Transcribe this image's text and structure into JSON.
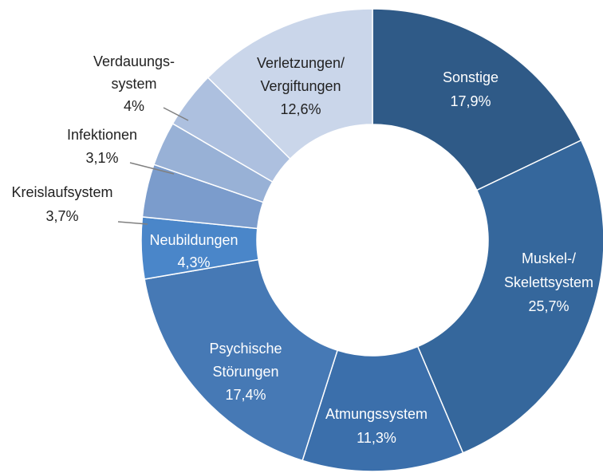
{
  "chart_data": {
    "type": "donut",
    "categories": [
      [
        "Sonstige"
      ],
      [
        "Muskel-/",
        "Skelettsystem"
      ],
      [
        "Atmungssystem"
      ],
      [
        "Psychische",
        "Störungen"
      ],
      [
        "Neubildungen"
      ],
      [
        "Kreislaufsystem"
      ],
      [
        "Infektionen"
      ],
      [
        "Verdauungs-",
        "system"
      ],
      [
        "Verletzungen/",
        "Vergiftungen"
      ]
    ],
    "values": [
      17.9,
      25.7,
      11.3,
      17.4,
      4.3,
      3.7,
      3.1,
      4,
      12.6
    ],
    "value_labels": [
      "17,9%",
      "25,7%",
      "11,3%",
      "17,4%",
      "4,3%",
      "3,7%",
      "3,1%",
      "4%",
      "12,6%"
    ],
    "colors": [
      "#2f5a87",
      "#35679c",
      "#3b6fab",
      "#4679b5",
      "#4a86c9",
      "#7b9ccc",
      "#98b1d6",
      "#adc0df",
      "#cad6ea"
    ]
  }
}
